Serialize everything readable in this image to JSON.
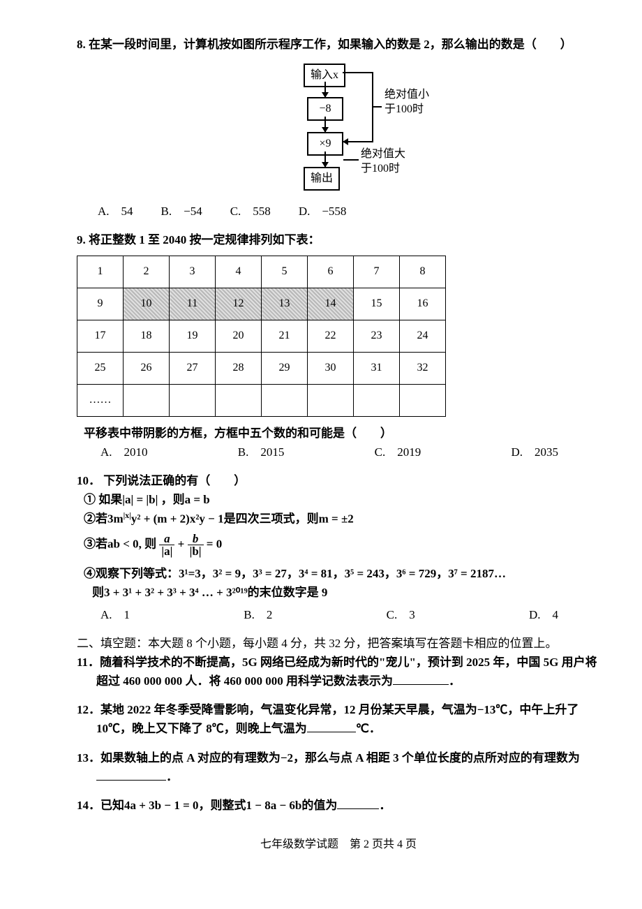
{
  "q8": {
    "num": "8.",
    "stem": "在某一段时间里，计算机按如图所示程序工作，如果输入的数是 2，那么输出的数是（　　）",
    "flow": {
      "in": "输入x",
      "op1": "−8",
      "op2": "×9",
      "out": "输出",
      "cond1a": "绝对值小",
      "cond1b": "于100时",
      "cond2a": "绝对值大",
      "cond2b": "于100时"
    },
    "opts": {
      "A": "A.　54",
      "B": "B.　−54",
      "C": "C.　558",
      "D": "D.　−558"
    }
  },
  "q9": {
    "num": "9.",
    "stem": "将正整数 1 至 2040 按一定规律排列如下表：",
    "table": {
      "rows": [
        [
          "1",
          "2",
          "3",
          "4",
          "5",
          "6",
          "7",
          "8"
        ],
        [
          "9",
          "10",
          "11",
          "12",
          "13",
          "14",
          "15",
          "16"
        ],
        [
          "17",
          "18",
          "19",
          "20",
          "21",
          "22",
          "23",
          "24"
        ],
        [
          "25",
          "26",
          "27",
          "28",
          "29",
          "30",
          "31",
          "32"
        ],
        [
          "……",
          "",
          "",
          "",
          "",
          "",
          "",
          ""
        ]
      ],
      "shaded": [
        [
          1,
          1
        ],
        [
          1,
          2
        ],
        [
          1,
          3
        ],
        [
          1,
          4
        ],
        [
          1,
          5
        ]
      ]
    },
    "tail": "平移表中带阴影的方框，方框中五个数的和可能是（　　）",
    "opts": {
      "A": "A.　2010",
      "B": "B.　2015",
      "C": "C.　2019",
      "D": "D.　2035"
    }
  },
  "q10": {
    "num": "10．",
    "stem": "下列说法正确的有（　　）",
    "s1": "① 如果|a| = |b| ，则a = b",
    "s2_pre": "②若3m",
    "s2_exp": "|x|",
    "s2_mid": "y² + (m + 2)x²y − 1是四次三项式，则m = ±2",
    "s3_pre": "③若ab < 0, 则",
    "s3_plus": " + ",
    "s3_eq": " = 0",
    "s4a": "④观察下列等式：3¹=3，3² = 9，3³ = 27，3⁴ = 81，3⁵ = 243，3⁶ = 729，3⁷ = 2187…",
    "s4b": "则3 + 3¹ + 3² + 3³ + 3⁴ … + 3²⁰¹⁹的末位数字是 9",
    "opts": {
      "A": "A.　1",
      "B": "B.　2",
      "C": "C.　3",
      "D": "D.　4"
    }
  },
  "sec2": "二、填空题：本大题 8 个小题，每小题 4 分，共 32 分，把答案填写在答题卡相应的位置上。",
  "q11": {
    "num": "11．",
    "text": "随着科学技术的不断提高，5G 网络已经成为新时代的\"宠儿\"，预计到 2025 年，中国 5G 用户将超过 460 000 000 人．将 460 000 000 用科学记数法表示为",
    "tail": "．"
  },
  "q12": {
    "num": "12．",
    "text": "某地 2022 年冬季受降雪影响，气温变化异常，12 月份某天早晨，气温为−13℃，中午上升了 10℃，晚上又下降了 8℃，则晚上气温为",
    "tail": "℃．"
  },
  "q13": {
    "num": "13．",
    "text": "如果数轴上的点 A 对应的有理数为−2，那么与点 A 相距 3 个单位长度的点所对应的有理数为",
    "tail": "．"
  },
  "q14": {
    "num": "14．",
    "text": "已知4a + 3b − 1 = 0，则整式1 − 8a − 6b的值为",
    "tail": "．"
  },
  "footer": "七年级数学试题　第 2 页共 4 页"
}
